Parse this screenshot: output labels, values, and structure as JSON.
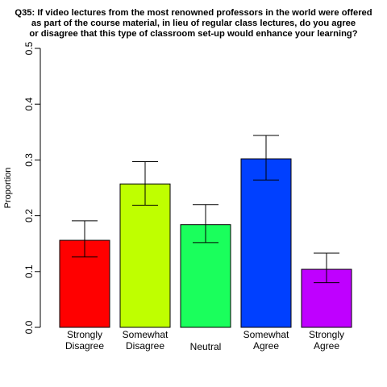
{
  "chart_data": {
    "type": "bar",
    "title_lines": [
      "Q35: If video lectures from the most renowned professors in the world were offered",
      "as part of the course material, in lieu of regular class lectures, do you agree",
      "or disagree that this type of classroom set-up would enhance your learning?"
    ],
    "ylabel": "Proportion",
    "xlabel": "",
    "ylim": [
      0,
      0.5
    ],
    "y_ticks": [
      "0.0",
      "0.1",
      "0.2",
      "0.3",
      "0.4",
      "0.5"
    ],
    "categories": [
      [
        "Strongly",
        "Disagree"
      ],
      [
        "Somewhat",
        "Disagree"
      ],
      [
        "Neutral"
      ],
      [
        "Somewhat",
        "Agree"
      ],
      [
        "Strongly",
        "Agree"
      ]
    ],
    "values": [
      0.156,
      0.257,
      0.184,
      0.302,
      0.104
    ],
    "error_low": [
      0.126,
      0.219,
      0.152,
      0.264,
      0.08
    ],
    "error_high": [
      0.191,
      0.297,
      0.22,
      0.344,
      0.133
    ],
    "colors": [
      "#FF0000",
      "#BFFF00",
      "#1AFF5C",
      "#0040FF",
      "#BF00FF"
    ],
    "grid": false,
    "legend": "none"
  }
}
